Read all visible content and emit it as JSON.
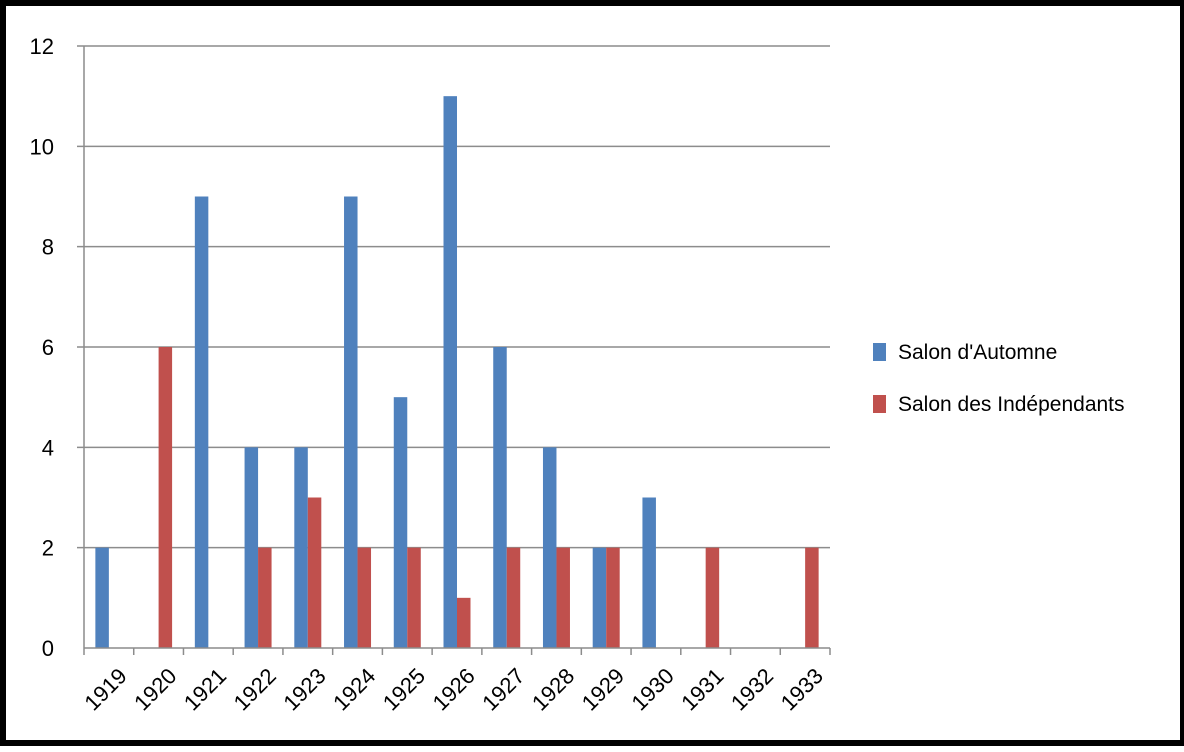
{
  "chart_data": {
    "type": "bar",
    "title": "",
    "xlabel": "",
    "ylabel": "",
    "categories": [
      "1919",
      "1920",
      "1921",
      "1922",
      "1923",
      "1924",
      "1925",
      "1926",
      "1927",
      "1928",
      "1929",
      "1930",
      "1931",
      "1932",
      "1933"
    ],
    "series": [
      {
        "name": "Salon d'Automne",
        "color": "#4f81bd",
        "values": [
          2,
          0,
          9,
          4,
          4,
          9,
          5,
          11,
          6,
          4,
          2,
          3,
          0,
          0,
          0
        ]
      },
      {
        "name": "Salon des Indépendants",
        "color": "#c0504d",
        "values": [
          0,
          6,
          0,
          2,
          3,
          2,
          2,
          1,
          2,
          2,
          2,
          0,
          2,
          0,
          2
        ]
      }
    ],
    "ylim": [
      0,
      12
    ],
    "yticks": [
      0,
      2,
      4,
      6,
      8,
      10,
      12
    ],
    "grid": true,
    "legend": "right"
  }
}
